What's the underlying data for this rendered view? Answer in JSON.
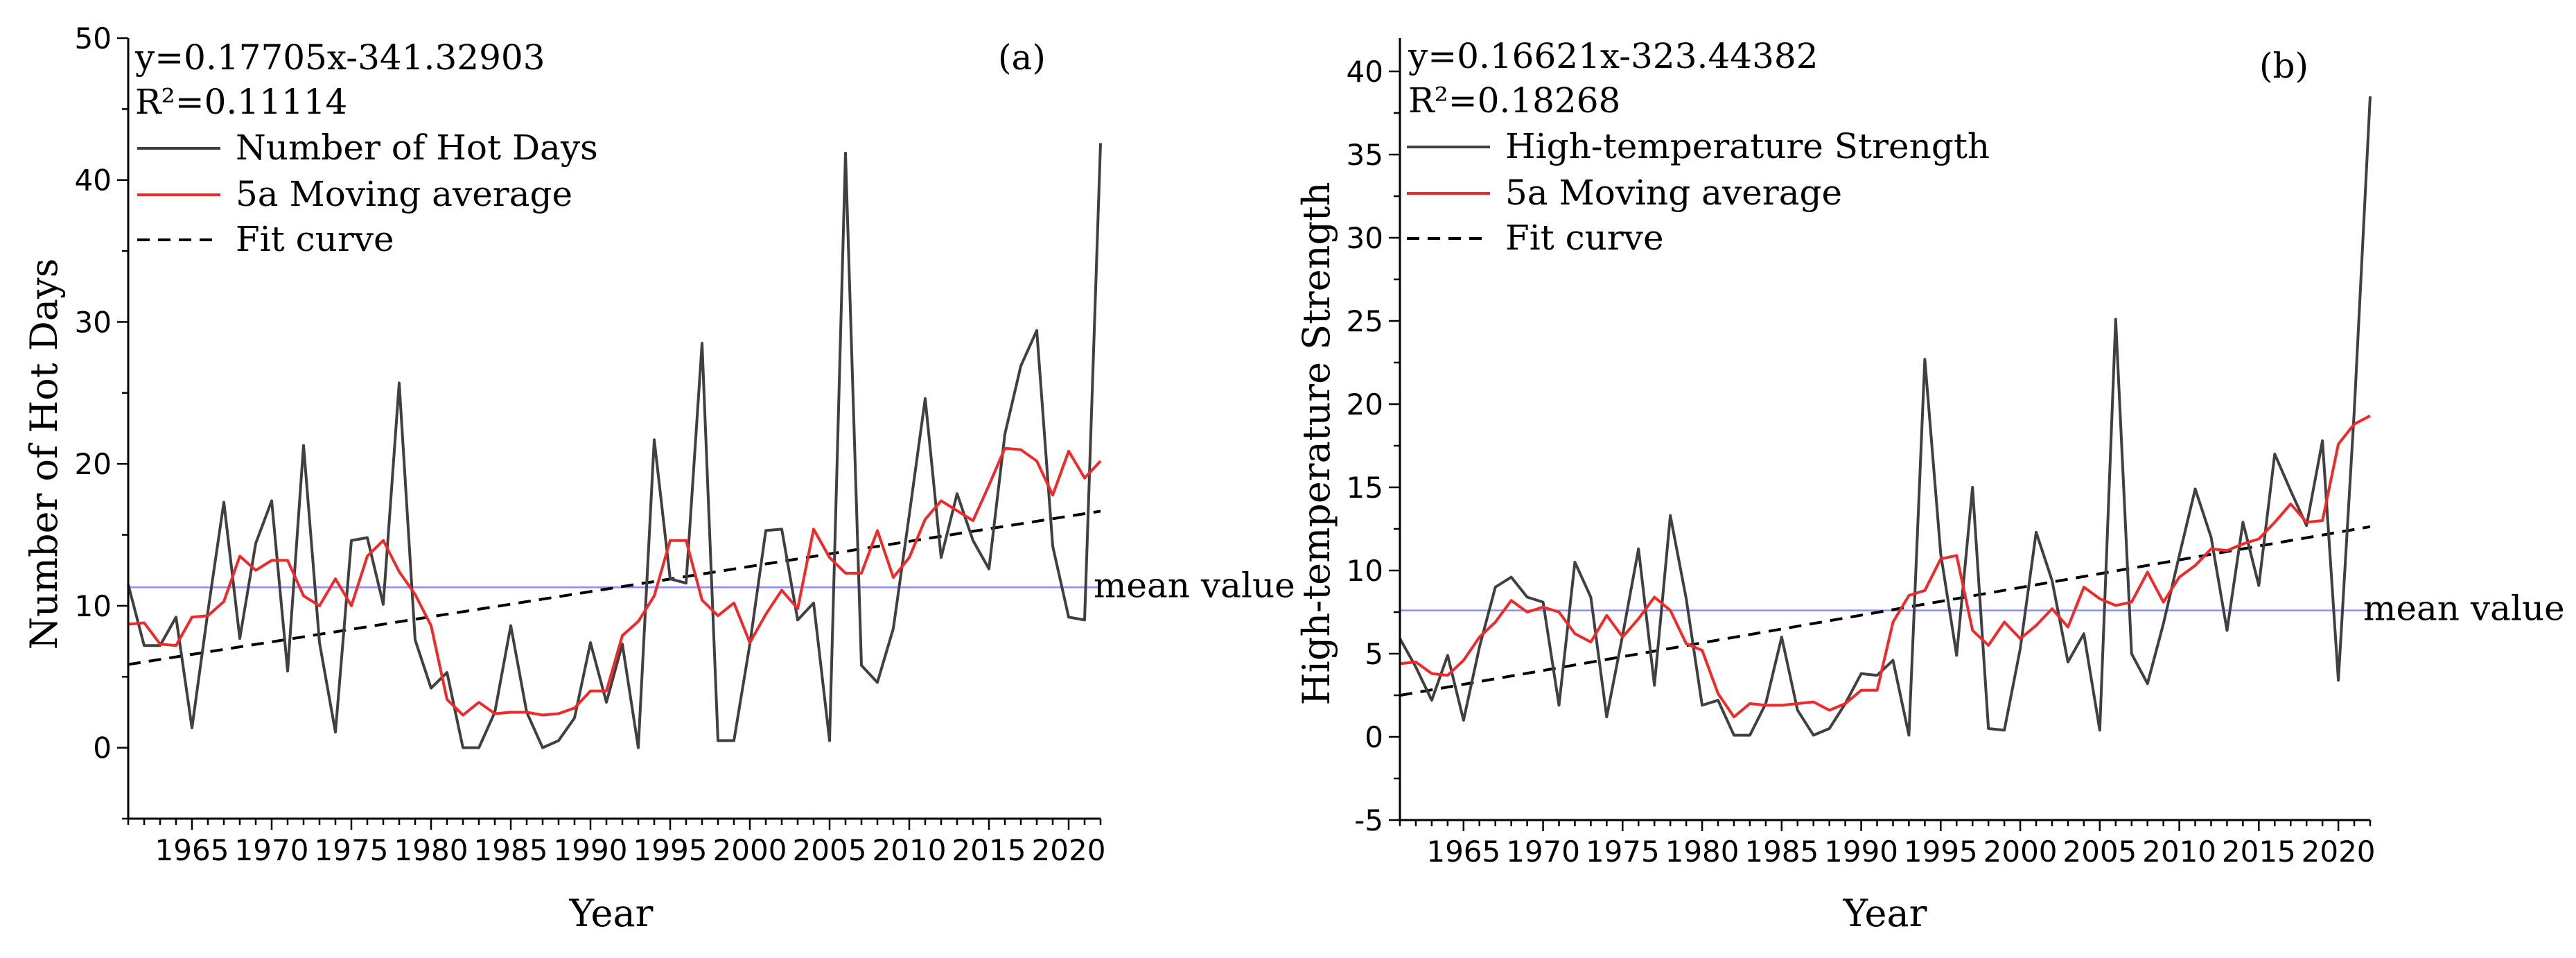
{
  "chart_data": [
    {
      "panel_label": "(a)",
      "type": "line",
      "xlabel": "Year",
      "ylabel": "Number of Hot Days",
      "equation": "y=0.17705x-341.32903",
      "r_squared": "R²=0.11114",
      "xlim": [
        1961,
        2022
      ],
      "ylim": [
        -5,
        50
      ],
      "xticks": [
        1965,
        1970,
        1975,
        1980,
        1985,
        1990,
        1995,
        2000,
        2005,
        2010,
        2015,
        2020
      ],
      "yticks": [
        0,
        10,
        20,
        30,
        40,
        50
      ],
      "mean_value": 11.3,
      "mean_label": "mean value",
      "fit": {
        "slope": 0.17705,
        "intercept": -341.32903
      },
      "legend": [
        "Number of Hot Days",
        "5a Moving average",
        "Fit curve"
      ],
      "years": [
        1961,
        1962,
        1963,
        1964,
        1965,
        1966,
        1967,
        1968,
        1969,
        1970,
        1971,
        1972,
        1973,
        1974,
        1975,
        1976,
        1977,
        1978,
        1979,
        1980,
        1981,
        1982,
        1983,
        1984,
        1985,
        1986,
        1987,
        1988,
        1989,
        1990,
        1991,
        1992,
        1993,
        1994,
        1995,
        1996,
        1997,
        1998,
        1999,
        2000,
        2001,
        2002,
        2003,
        2004,
        2005,
        2006,
        2007,
        2008,
        2009,
        2010,
        2011,
        2012,
        2013,
        2014,
        2015,
        2016,
        2017,
        2018,
        2019,
        2020,
        2021,
        2022
      ],
      "series": [
        {
          "name": "Number of Hot Days",
          "color": "#404040",
          "values": [
            11.5,
            7.2,
            7.2,
            9.2,
            1.4,
            9.6,
            17.3,
            7.7,
            14.4,
            17.4,
            5.4,
            21.3,
            7.4,
            1.1,
            14.6,
            14.8,
            10.1,
            25.7,
            7.6,
            4.2,
            5.3,
            0,
            0,
            2.5,
            8.6,
            2.5,
            0,
            0.5,
            2.1,
            7.4,
            3.2,
            7.3,
            0,
            21.7,
            11.9,
            11.6,
            28.5,
            0.5,
            0.5,
            7.3,
            15.3,
            15.4,
            9.0,
            10.2,
            0.5,
            41.9,
            5.8,
            4.6,
            8.4,
            16.4,
            24.6,
            13.4,
            17.9,
            14.6,
            12.6,
            22.1,
            26.9,
            29.4,
            14.2,
            9.2,
            9.0,
            42.6
          ]
        },
        {
          "name": "5a Moving average",
          "color": "#ee2a2a",
          "values": [
            8.7,
            8.8,
            7.3,
            7.2,
            9.2,
            9.3,
            10.3,
            13.5,
            12.5,
            13.2,
            13.2,
            10.7,
            10.0,
            11.9,
            10.0,
            13.5,
            14.6,
            12.4,
            10.8,
            8.6,
            3.4,
            2.3,
            3.2,
            2.4,
            2.5,
            2.5,
            2.3,
            2.4,
            2.8,
            4.0,
            4.0,
            7.9,
            8.9,
            10.7,
            14.6,
            14.6,
            10.4,
            9.3,
            10.2,
            7.4,
            9.4,
            11.1,
            9.8,
            15.4,
            13.4,
            12.3,
            12.3,
            15.3,
            12.0,
            13.4,
            16.1,
            17.4,
            16.7,
            16.0,
            18.5,
            21.1,
            21.0,
            20.2,
            17.8,
            20.9,
            19.0,
            20.2
          ]
        }
      ]
    },
    {
      "panel_label": "(b)",
      "type": "line",
      "xlabel": "Year",
      "ylabel": "High-temperature Strength",
      "equation": "y=0.16621x-323.44382",
      "r_squared": "R²=0.18268",
      "xlim": [
        1961,
        2022
      ],
      "ylim": [
        -5,
        42
      ],
      "xticks": [
        1965,
        1970,
        1975,
        1980,
        1985,
        1990,
        1995,
        2000,
        2005,
        2010,
        2015,
        2020
      ],
      "yticks": [
        -5,
        0,
        5,
        10,
        15,
        20,
        25,
        30,
        35,
        40
      ],
      "mean_value": 7.6,
      "mean_label": "mean value",
      "fit": {
        "slope": 0.16621,
        "intercept": -323.44382
      },
      "legend": [
        "High-temperature Strength",
        "5a Moving average",
        "Fit curve"
      ],
      "years": [
        1961,
        1962,
        1963,
        1964,
        1965,
        1966,
        1967,
        1968,
        1969,
        1970,
        1971,
        1972,
        1973,
        1974,
        1975,
        1976,
        1977,
        1978,
        1979,
        1980,
        1981,
        1982,
        1983,
        1984,
        1985,
        1986,
        1987,
        1988,
        1989,
        1990,
        1991,
        1992,
        1993,
        1994,
        1995,
        1996,
        1997,
        1998,
        1999,
        2000,
        2001,
        2002,
        2003,
        2004,
        2005,
        2006,
        2007,
        2008,
        2009,
        2010,
        2011,
        2012,
        2013,
        2014,
        2015,
        2016,
        2017,
        2018,
        2019,
        2020,
        2021,
        2022
      ],
      "series": [
        {
          "name": "High-temperature Strength",
          "color": "#404040",
          "values": [
            5.9,
            4.2,
            2.2,
            4.9,
            1.0,
            5.4,
            9.0,
            9.6,
            8.4,
            8.1,
            1.9,
            10.5,
            8.4,
            1.2,
            6.1,
            11.3,
            3.1,
            13.3,
            8.3,
            1.9,
            2.2,
            0.1,
            0.1,
            2.0,
            6.0,
            1.6,
            0.1,
            0.5,
            2.0,
            3.8,
            3.7,
            4.6,
            0.1,
            22.7,
            11.0,
            4.9,
            15.0,
            0.5,
            0.4,
            5.3,
            12.3,
            9.4,
            4.5,
            6.2,
            0.4,
            25.1,
            5.0,
            3.2,
            6.8,
            10.9,
            14.9,
            12.0,
            6.4,
            12.9,
            9.1,
            17.0,
            14.8,
            12.7,
            17.8,
            3.4,
            19.6,
            38.5
          ]
        },
        {
          "name": "5a Moving average",
          "color": "#ee2a2a",
          "values": [
            4.4,
            4.5,
            3.8,
            3.7,
            4.6,
            6.0,
            6.9,
            8.2,
            7.5,
            7.8,
            7.5,
            6.2,
            5.7,
            7.3,
            6.0,
            7.1,
            8.4,
            7.6,
            5.6,
            5.2,
            2.6,
            1.2,
            2.0,
            1.9,
            1.9,
            2.0,
            2.1,
            1.6,
            2.0,
            2.8,
            2.8,
            6.9,
            8.5,
            8.8,
            10.7,
            10.9,
            6.4,
            5.5,
            6.9,
            5.9,
            6.7,
            7.7,
            6.6,
            9.0,
            8.3,
            7.9,
            8.1,
            9.9,
            8.1,
            9.6,
            10.3,
            11.3,
            11.2,
            11.6,
            11.9,
            12.9,
            14.0,
            12.9,
            13.0,
            17.6,
            18.8,
            19.3
          ]
        }
      ]
    }
  ]
}
